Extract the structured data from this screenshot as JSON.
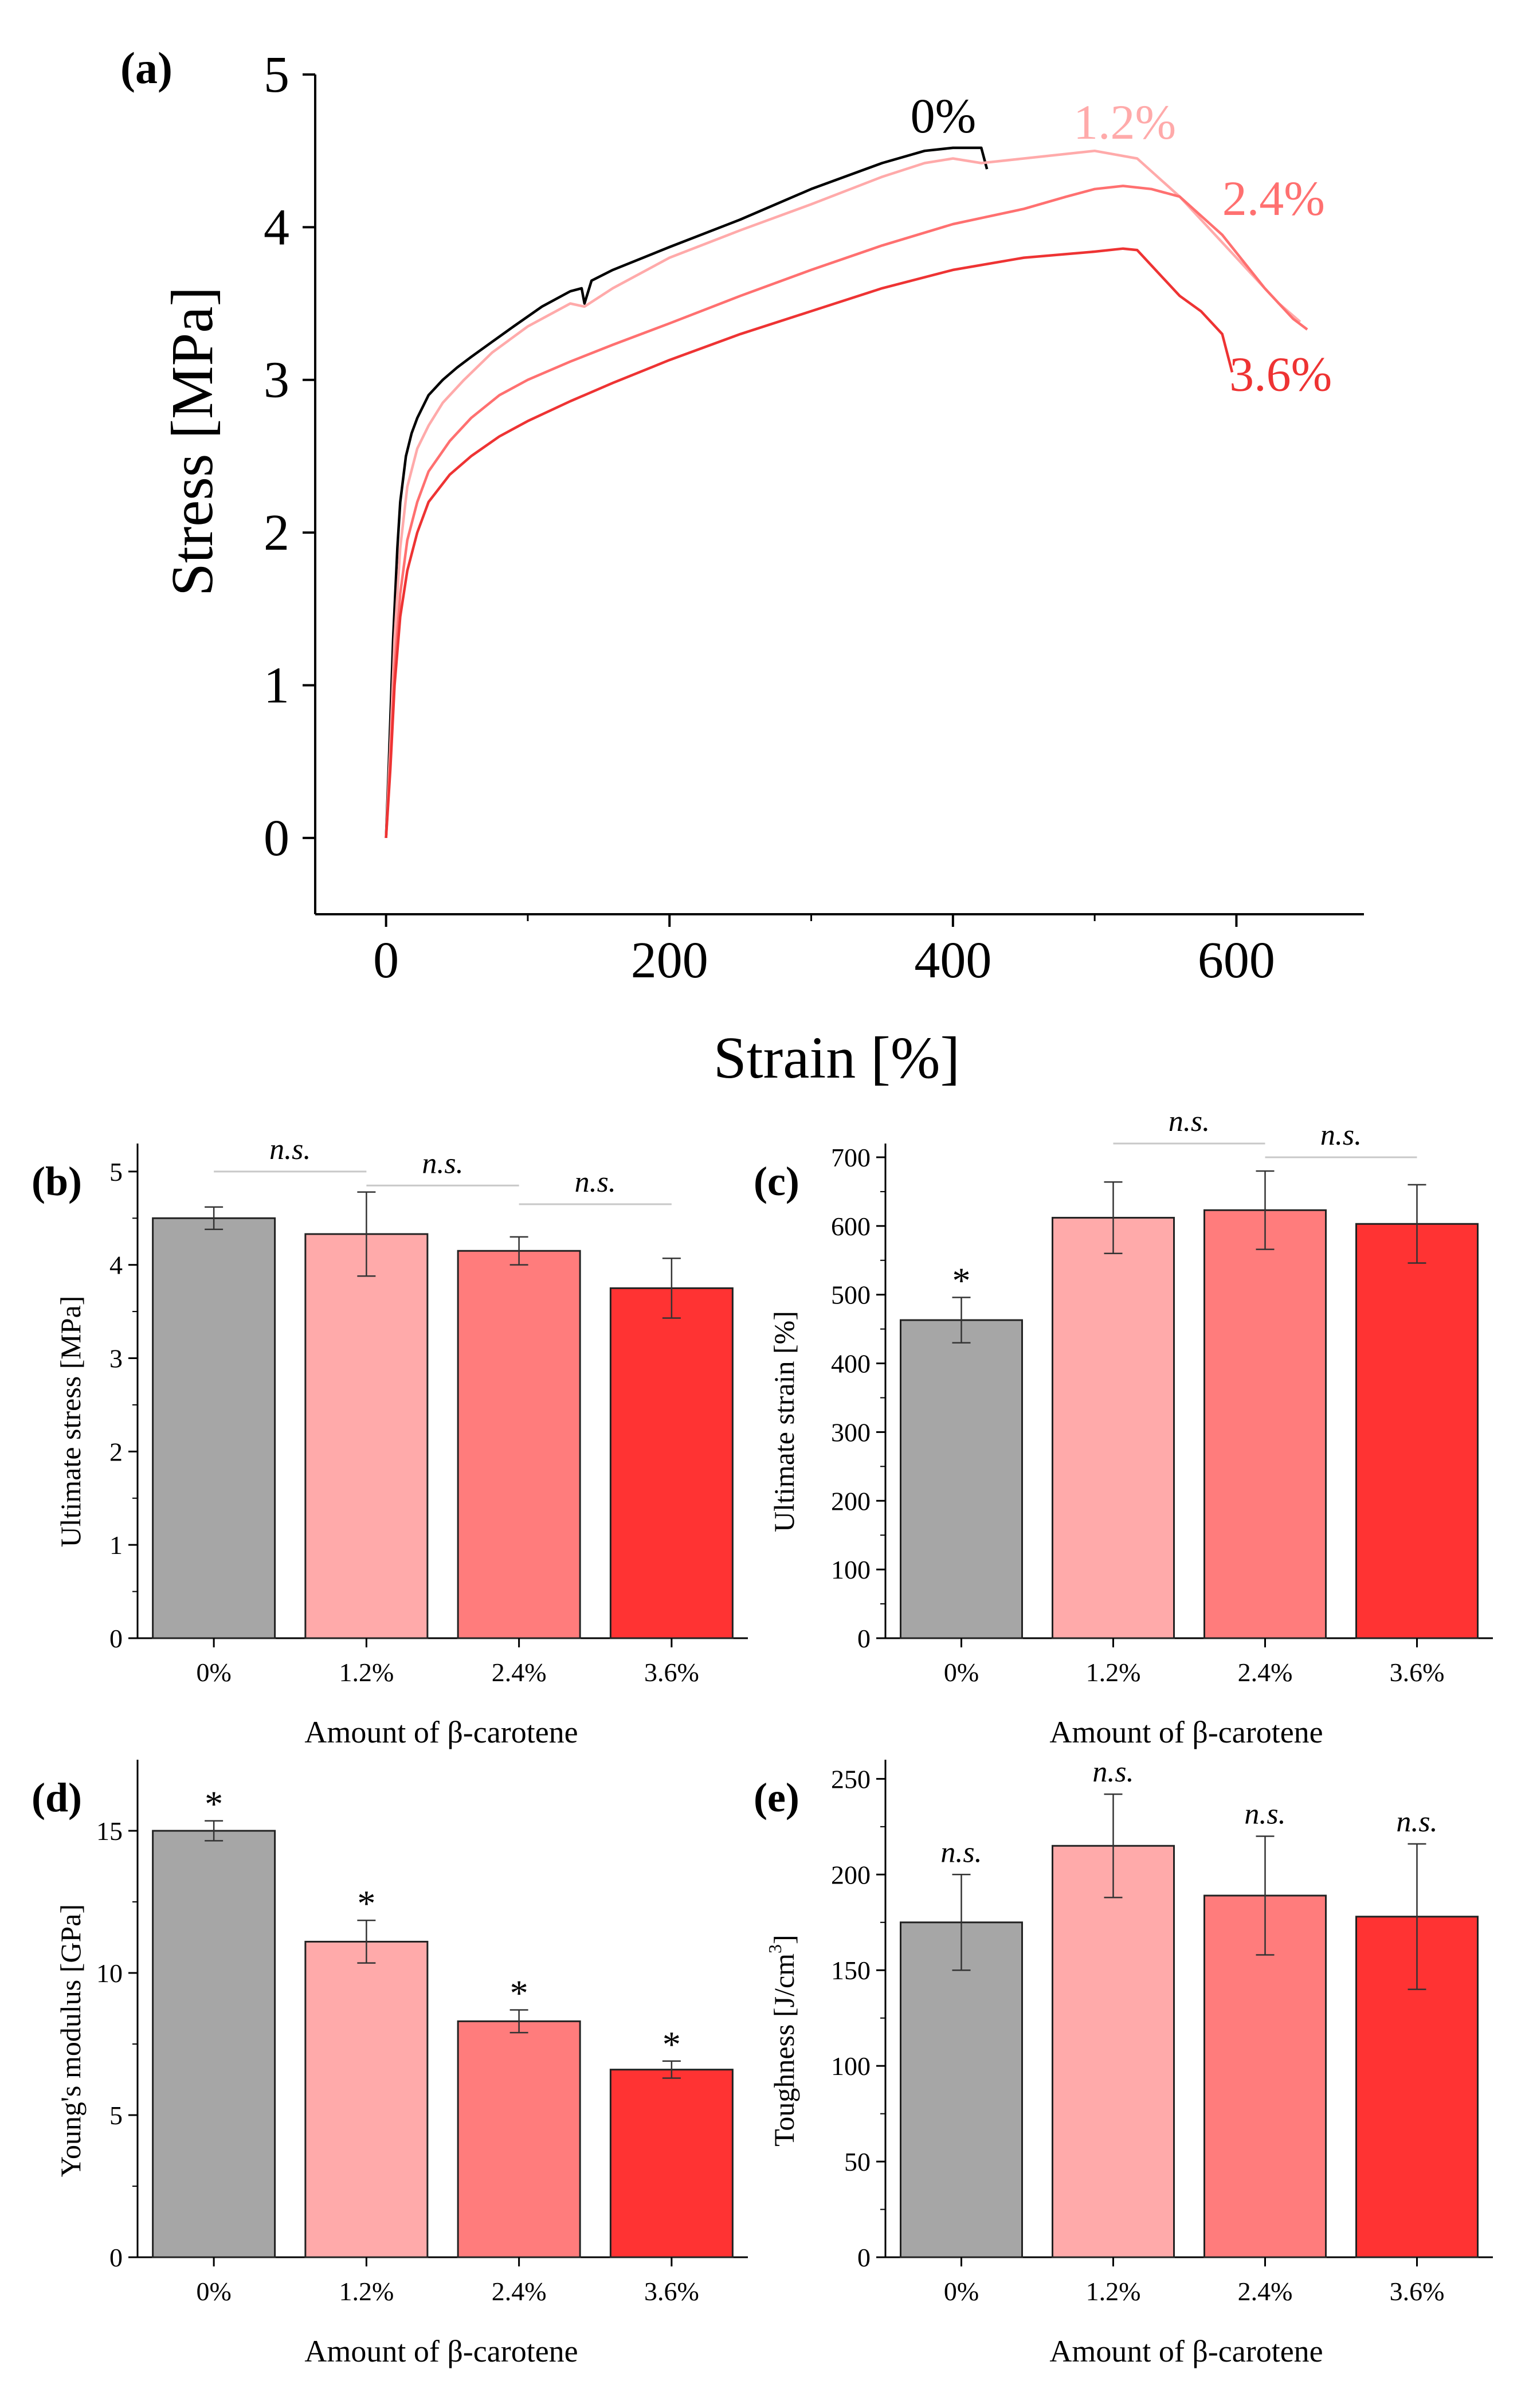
{
  "colors": {
    "gray": "#a6a6a6",
    "light_pink": "#ffaaaa",
    "pink": "#ff7c7c",
    "red": "#ff3333",
    "curve_0": "#000000",
    "curve_12": "#ffaaaa",
    "curve_24": "#ff7070",
    "curve_36": "#ee3333",
    "ns_line": "#c8c8c8"
  },
  "chart_data": [
    {
      "panel": "(a)",
      "type": "line",
      "xlabel": "Strain [%]",
      "ylabel": "Stress [MPa]",
      "xlim": [
        -50,
        690
      ],
      "ylim": [
        -0.5,
        5
      ],
      "xticks": [
        0,
        200,
        400,
        600
      ],
      "yticks": [
        0,
        1,
        2,
        3,
        4,
        5
      ],
      "series": [
        {
          "name": "0%",
          "color_key": "curve_0",
          "x": [
            0,
            2,
            5,
            8,
            10,
            14,
            18,
            22,
            30,
            40,
            50,
            60,
            75,
            90,
            110,
            130,
            138,
            140,
            145,
            160,
            200,
            250,
            300,
            350,
            380,
            400,
            420,
            424
          ],
          "y": [
            0,
            0.5,
            1.3,
            1.9,
            2.2,
            2.5,
            2.65,
            2.75,
            2.9,
            3.0,
            3.08,
            3.15,
            3.25,
            3.35,
            3.48,
            3.58,
            3.6,
            3.5,
            3.65,
            3.72,
            3.87,
            4.05,
            4.25,
            4.42,
            4.5,
            4.52,
            4.52,
            4.38
          ]
        },
        {
          "name": "1.2%",
          "color_key": "curve_12",
          "x": [
            0,
            3,
            6,
            10,
            15,
            22,
            30,
            40,
            55,
            75,
            100,
            130,
            140,
            160,
            200,
            250,
            300,
            350,
            380,
            400,
            420,
            450,
            500,
            530,
            560,
            590,
            610,
            630,
            645
          ],
          "y": [
            0,
            0.6,
            1.3,
            1.9,
            2.3,
            2.55,
            2.7,
            2.85,
            3.0,
            3.18,
            3.35,
            3.5,
            3.48,
            3.6,
            3.8,
            3.98,
            4.15,
            4.33,
            4.42,
            4.45,
            4.42,
            4.45,
            4.5,
            4.45,
            4.2,
            3.9,
            3.7,
            3.5,
            3.38
          ]
        },
        {
          "name": "2.4%",
          "color_key": "curve_24",
          "x": [
            0,
            3,
            6,
            10,
            15,
            22,
            30,
            45,
            60,
            80,
            100,
            130,
            160,
            200,
            250,
            300,
            350,
            400,
            450,
            480,
            500,
            520,
            540,
            560,
            590,
            620,
            640,
            650
          ],
          "y": [
            0,
            0.5,
            1.1,
            1.6,
            1.95,
            2.2,
            2.4,
            2.6,
            2.75,
            2.9,
            3.0,
            3.12,
            3.23,
            3.37,
            3.55,
            3.72,
            3.88,
            4.02,
            4.12,
            4.2,
            4.25,
            4.27,
            4.25,
            4.2,
            3.95,
            3.6,
            3.4,
            3.33
          ]
        },
        {
          "name": "3.6%",
          "color_key": "curve_36",
          "x": [
            0,
            3,
            6,
            10,
            15,
            22,
            30,
            45,
            60,
            80,
            100,
            130,
            160,
            200,
            250,
            300,
            350,
            400,
            450,
            500,
            520,
            530,
            545,
            560,
            575,
            590,
            597
          ],
          "y": [
            0,
            0.45,
            1.0,
            1.45,
            1.75,
            2.0,
            2.2,
            2.38,
            2.5,
            2.63,
            2.73,
            2.86,
            2.98,
            3.13,
            3.3,
            3.45,
            3.6,
            3.72,
            3.8,
            3.84,
            3.86,
            3.85,
            3.7,
            3.55,
            3.45,
            3.3,
            3.05
          ]
        }
      ],
      "curve_labels": [
        {
          "text": "0%",
          "x": 370,
          "y": 4.62,
          "color_key": "curve_0"
        },
        {
          "text": "1.2%",
          "x": 485,
          "y": 4.58,
          "color_key": "curve_12"
        },
        {
          "text": "2.4%",
          "x": 590,
          "y": 4.08,
          "color_key": "curve_24"
        },
        {
          "text": "3.6%",
          "x": 595,
          "y": 2.93,
          "color_key": "curve_36"
        }
      ]
    },
    {
      "panel": "(b)",
      "type": "bar",
      "categories": [
        "0%",
        "1.2%",
        "2.4%",
        "3.6%"
      ],
      "values": [
        4.5,
        4.33,
        4.15,
        3.75
      ],
      "errors": [
        0.12,
        0.45,
        0.15,
        0.32
      ],
      "ylabel": "Ultimate stress [MPa]",
      "xlabel": "Amount of β-carotene",
      "ylim": [
        0,
        5.3
      ],
      "yticks": [
        0,
        1,
        2,
        3,
        4,
        5
      ],
      "annotations": [
        {
          "text": "n.s.",
          "kind": "bracket",
          "from": 0,
          "to": 1,
          "y": 5.0
        },
        {
          "text": "n.s.",
          "kind": "bracket",
          "from": 1,
          "to": 2,
          "y": 4.85
        },
        {
          "text": "n.s.",
          "kind": "bracket",
          "from": 2,
          "to": 3,
          "y": 4.65
        }
      ]
    },
    {
      "panel": "(c)",
      "type": "bar",
      "categories": [
        "0%",
        "1.2%",
        "2.4%",
        "3.6%"
      ],
      "values": [
        463,
        612,
        623,
        603
      ],
      "errors": [
        33,
        52,
        57,
        57
      ],
      "ylabel": "Ultimate strain [%]",
      "xlabel": "Amount of β-carotene",
      "ylim": [
        0,
        720
      ],
      "yticks": [
        0,
        100,
        200,
        300,
        400,
        500,
        600,
        700
      ],
      "annotations": [
        {
          "text": "*",
          "kind": "above",
          "index": 0
        },
        {
          "text": "n.s.",
          "kind": "bracket",
          "from": 1,
          "to": 2,
          "y": 720
        },
        {
          "text": "n.s.",
          "kind": "bracket",
          "from": 2,
          "to": 3,
          "y": 700
        }
      ]
    },
    {
      "panel": "(d)",
      "type": "bar",
      "categories": [
        "0%",
        "1.2%",
        "2.4%",
        "3.6%"
      ],
      "values": [
        15.0,
        11.1,
        8.3,
        6.6
      ],
      "errors": [
        0.35,
        0.75,
        0.4,
        0.3
      ],
      "ylabel": "Young's modulus [GPa]",
      "xlabel": "Amount of β-carotene",
      "ylim": [
        0,
        17.5
      ],
      "yticks": [
        0,
        5,
        10,
        15
      ],
      "annotations": [
        {
          "text": "*",
          "kind": "above",
          "index": 0
        },
        {
          "text": "*",
          "kind": "above",
          "index": 1
        },
        {
          "text": "*",
          "kind": "above",
          "index": 2
        },
        {
          "text": "*",
          "kind": "above",
          "index": 3
        }
      ]
    },
    {
      "panel": "(e)",
      "type": "bar",
      "categories": [
        "0%",
        "1.2%",
        "2.4%",
        "3.6%"
      ],
      "values": [
        175,
        215,
        189,
        178
      ],
      "errors": [
        25,
        27,
        31,
        38
      ],
      "ylabel_main": "Toughness [J/cm",
      "ylabel_sup": "3",
      "ylabel_end": "]",
      "xlabel": "Amount of β-carotene",
      "ylim": [
        0,
        260
      ],
      "yticks": [
        0,
        50,
        100,
        150,
        200,
        250
      ],
      "annotations": [
        {
          "text": "n.s.",
          "kind": "above",
          "index": 0
        },
        {
          "text": "n.s.",
          "kind": "above",
          "index": 1
        },
        {
          "text": "n.s.",
          "kind": "above",
          "index": 2
        },
        {
          "text": "n.s.",
          "kind": "above",
          "index": 3
        }
      ]
    }
  ]
}
